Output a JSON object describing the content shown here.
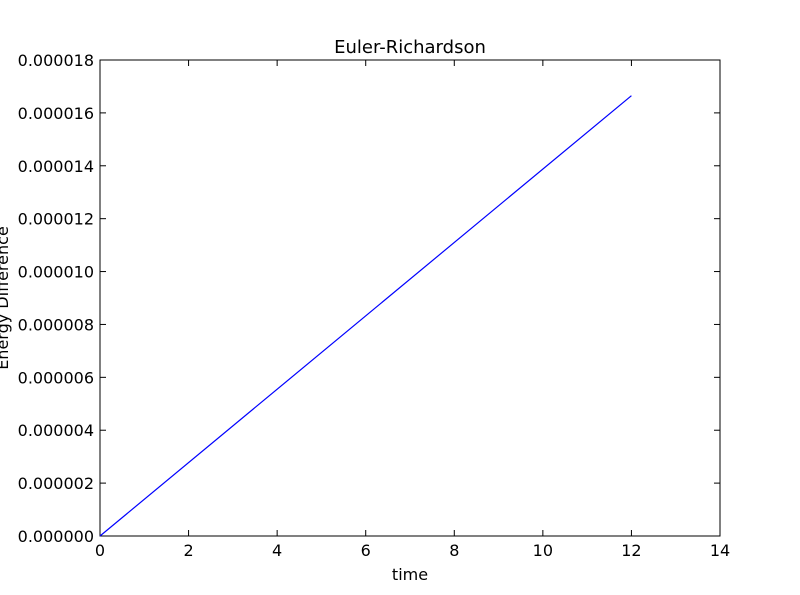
{
  "chart_data": {
    "type": "line",
    "title": "Euler-Richardson",
    "xlabel": "time",
    "ylabel": "Energy Difference",
    "xlim": [
      0,
      14
    ],
    "ylim": [
      0,
      1.8e-05
    ],
    "xticks": [
      0,
      2,
      4,
      6,
      8,
      10,
      12,
      14
    ],
    "yticks": [
      0,
      2e-06,
      4e-06,
      6e-06,
      8e-06,
      1e-05,
      1.2e-05,
      1.4e-05,
      1.6e-05,
      1.8e-05
    ],
    "xtick_labels": [
      "0",
      "2",
      "4",
      "6",
      "8",
      "10",
      "12",
      "14"
    ],
    "ytick_labels": [
      "0.000000",
      "0.000002",
      "0.000004",
      "0.000006",
      "0.000008",
      "0.000010",
      "0.000012",
      "0.000014",
      "0.000016",
      "0.000018"
    ],
    "grid": false,
    "series": [
      {
        "color": "#0000ff",
        "x": [
          0,
          12
        ],
        "y": [
          0,
          1.665e-05
        ]
      }
    ]
  }
}
